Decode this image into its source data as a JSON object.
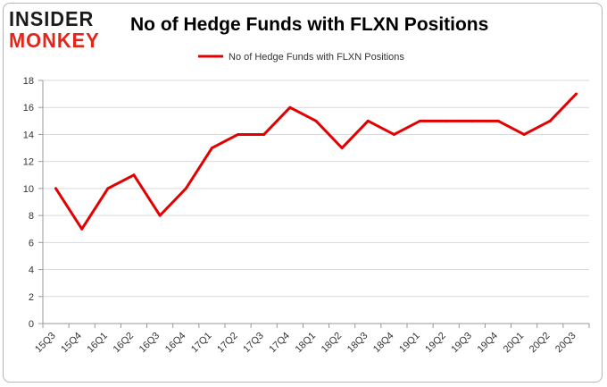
{
  "branding": {
    "logo_line1": "INSIDER",
    "logo_line2": "MONKEY",
    "logo_colors": {
      "line1": "#1b1b1b",
      "line2": "#e1261c"
    }
  },
  "chart_data": {
    "type": "line",
    "title": "No of Hedge Funds with FLXN Positions",
    "xlabel": "",
    "ylabel": "",
    "categories": [
      "15Q3",
      "15Q4",
      "16Q1",
      "16Q2",
      "16Q3",
      "16Q4",
      "17Q1",
      "17Q2",
      "17Q3",
      "17Q4",
      "18Q1",
      "18Q2",
      "18Q3",
      "18Q4",
      "19Q1",
      "19Q2",
      "19Q3",
      "19Q4",
      "20Q1",
      "20Q2",
      "20Q3"
    ],
    "series": [
      {
        "name": "No of Hedge Funds with FLXN Positions",
        "color": "#e30000",
        "values": [
          10,
          7,
          10,
          11,
          8,
          10,
          13,
          14,
          14,
          16,
          15,
          13,
          15,
          14,
          15,
          15,
          15,
          15,
          14,
          15,
          17
        ]
      }
    ],
    "ylim": [
      0,
      18
    ],
    "yticks": [
      0,
      2,
      4,
      6,
      8,
      10,
      12,
      14,
      16,
      18
    ],
    "grid": true,
    "legend_position": "top-center"
  }
}
